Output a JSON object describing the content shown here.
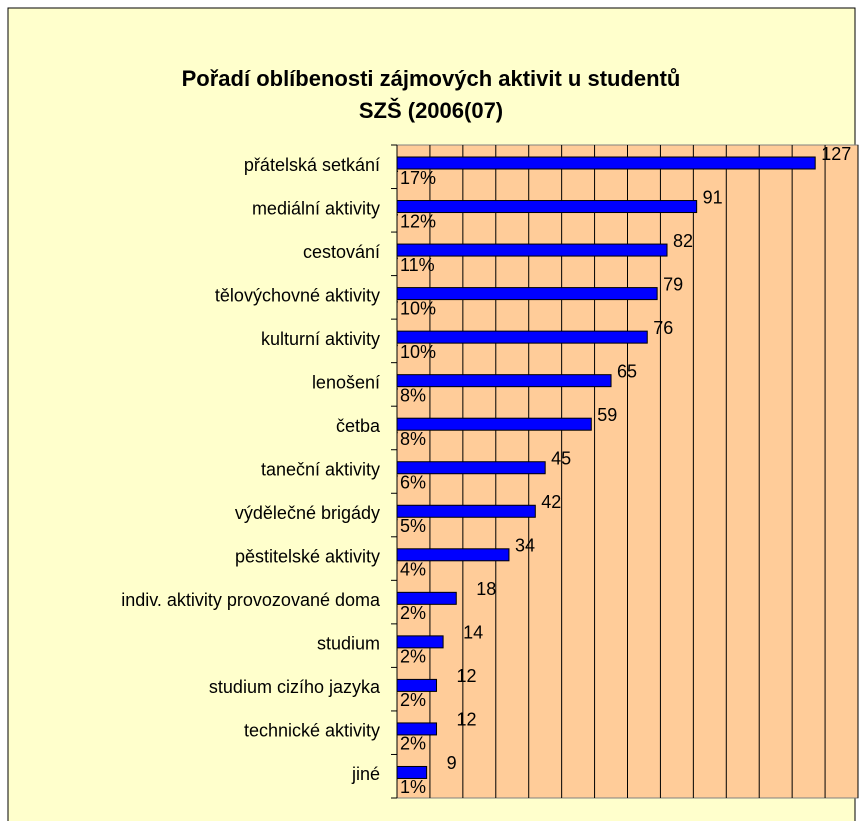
{
  "chart_data": {
    "type": "bar",
    "orientation": "horizontal",
    "title": [
      "Pořadí oblíbenosti zájmových aktivit u studentů",
      "SZŠ (2006(07)"
    ],
    "categories": [
      "přátelská setkání",
      "mediální aktivity",
      "cestování",
      "tělovýchovné aktivity",
      "kulturní aktivity",
      "lenošení",
      "četba",
      "taneční aktivity",
      "výdělečné brigády",
      "pěstitelské aktivity",
      "indiv. aktivity provozované doma",
      "studium",
      "studium cizího jazyka",
      "technické aktivity",
      "jiné"
    ],
    "series": [
      {
        "color": "#0000ff",
        "values": [
          127,
          91,
          82,
          79,
          76,
          65,
          59,
          45,
          42,
          34,
          18,
          14,
          12,
          12,
          9
        ]
      },
      {
        "color": "#ff00ff",
        "values": [
          0.17,
          0.12,
          0.11,
          0.1,
          0.1,
          0.08,
          0.08,
          0.06,
          0.05,
          0.04,
          0.02,
          0.02,
          0.02,
          0.02,
          0.01
        ],
        "value_labels": [
          "17%",
          "12%",
          "11%",
          "10%",
          "10%",
          "8%",
          "8%",
          "6%",
          "5%",
          "4%",
          "2%",
          "2%",
          "2%",
          "2%",
          "1%"
        ]
      }
    ],
    "xlim": [
      0,
      140
    ],
    "xticks": [
      0,
      10,
      20,
      30,
      40,
      50,
      60,
      70,
      80,
      90,
      100,
      110,
      120,
      130,
      140
    ],
    "grid": true,
    "background": "#ffffcc",
    "plot_background": "#ffcc99"
  }
}
